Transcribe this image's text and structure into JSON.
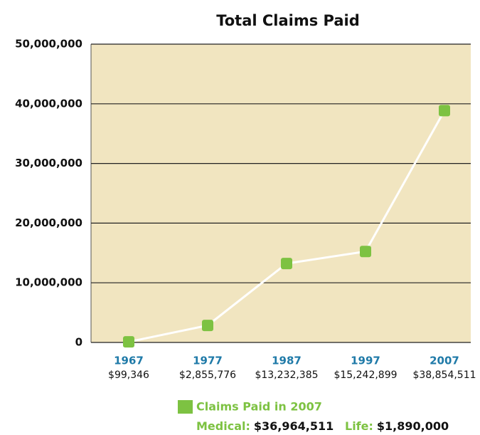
{
  "chart_data": {
    "type": "line",
    "title": "Total Claims Paid",
    "categories": [
      "1967",
      "1977",
      "1987",
      "1997",
      "2007"
    ],
    "series": [
      {
        "name": "Claims Paid in 2007",
        "color": "#7dc242",
        "values": [
          99346,
          2855776,
          13232385,
          15242899,
          38854511
        ],
        "value_labels": [
          "$99,346",
          "$2,855,776",
          "$13,232,385",
          "$15,242,899",
          "$38,854,511"
        ]
      }
    ],
    "ylim": [
      0,
      50000000
    ],
    "yticks": [
      0,
      {
        "value": 10000000,
        "label": "10,000,000"
      },
      {
        "value": 20000000,
        "label": "20,000,000"
      },
      {
        "value": 30000000,
        "label": "30,000,000"
      },
      {
        "value": 40000000,
        "label": "40,000,000"
      },
      {
        "value": 50000000,
        "label": "50,000,000"
      }
    ],
    "grid": true,
    "plot_background": "#f1e5c0",
    "line_color": "#ffffff",
    "annotations": [
      {
        "label": "Medical:",
        "value": "$36,964,511"
      },
      {
        "label": "Life:",
        "value": "$1,890,000"
      }
    ]
  }
}
